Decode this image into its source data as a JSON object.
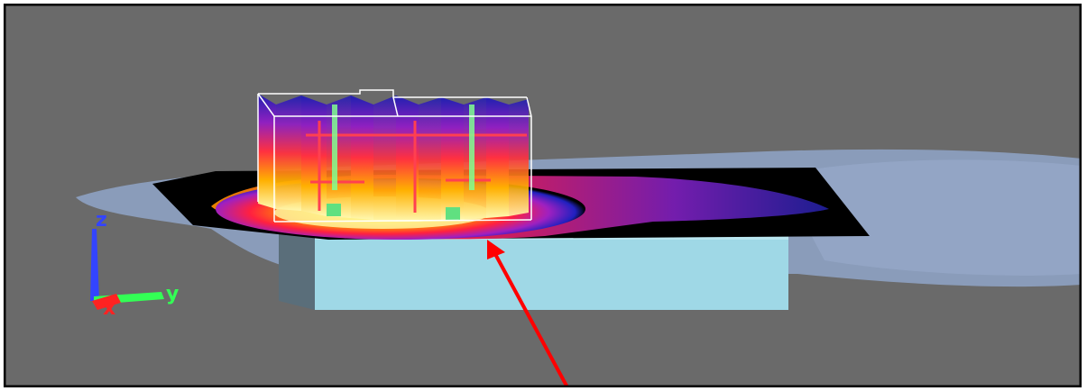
{
  "viewport": {
    "axes": {
      "z_label": "z",
      "y_label": "y",
      "x_label": "x",
      "z_color": "#3344ff",
      "y_color": "#33ff55",
      "x_color": "#ff2222"
    },
    "colors": {
      "background": "#6a6a6a",
      "frame": "#000000",
      "ground_shadow": "#8fa4c8",
      "foundation_block": "#9fd8e6",
      "plume_plane": "#000000",
      "annotation_arrow": "#ff0000"
    }
  }
}
